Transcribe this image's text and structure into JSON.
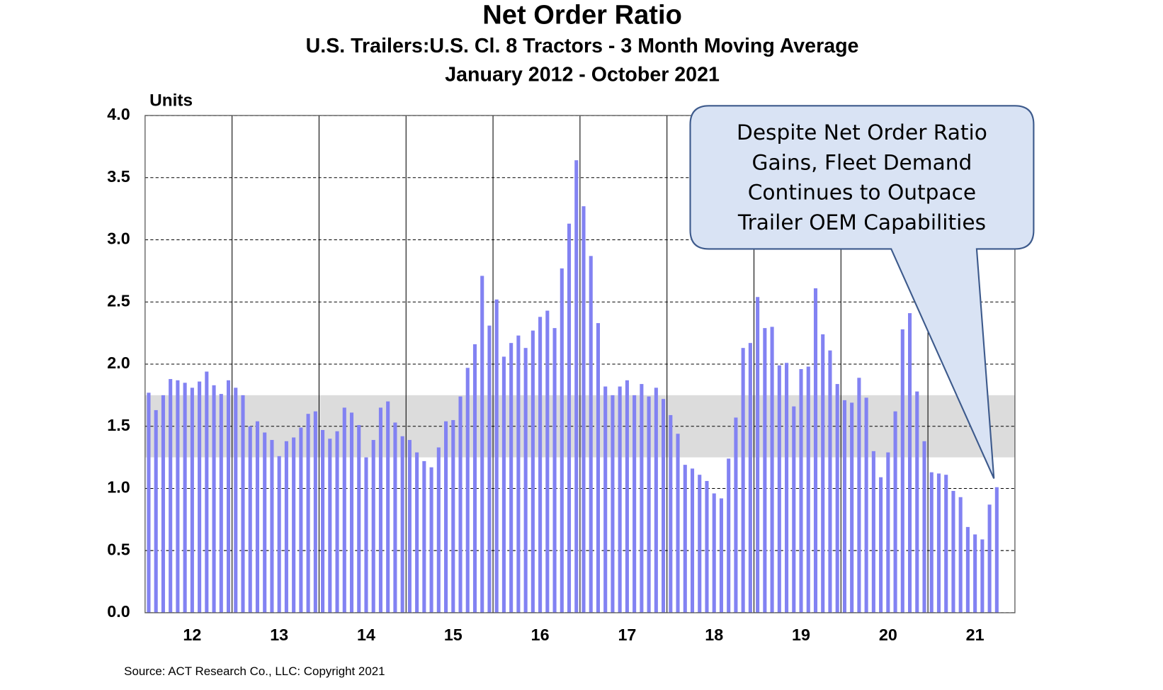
{
  "chart_data": {
    "type": "bar",
    "title": "Net Order Ratio",
    "subtitle": "U.S. Trailers:U.S. Cl. 8 Tractors - 3 Month Moving Average",
    "period": "January 2012 - October 2021",
    "y_label": "Units",
    "source": "Source:  ACT Research  Co., LLC: Copyright  2021",
    "annotation": [
      "Despite Net Order Ratio",
      "Gains, Fleet Demand",
      "Continues to Outpace",
      "Trailer OEM Capabilities"
    ],
    "color": "#8282f2",
    "band": [
      1.25,
      1.75
    ],
    "band_color": "#dcdcdc",
    "grid": true,
    "ylim": [
      0,
      4
    ],
    "yticks": [
      {
        "value": 0,
        "label": "0.0"
      },
      0.5,
      {
        "value": 1,
        "label": "1.0"
      },
      1.5,
      {
        "value": 2,
        "label": "2.0"
      },
      2.5,
      {
        "value": 3,
        "label": "3.0"
      },
      3.5,
      {
        "value": 4,
        "label": "4.0"
      }
    ],
    "categories": [
      null,
      null,
      null,
      null,
      null,
      null,
      "12",
      null,
      null,
      null,
      null,
      null,
      null,
      null,
      null,
      null,
      null,
      null,
      "13",
      null,
      null,
      null,
      null,
      null,
      null,
      null,
      null,
      null,
      null,
      null,
      "14",
      null,
      null,
      null,
      null,
      null,
      null,
      null,
      null,
      null,
      null,
      null,
      "15",
      null,
      null,
      null,
      null,
      null,
      null,
      null,
      null,
      null,
      null,
      null,
      "16",
      null,
      null,
      null,
      null,
      null,
      null,
      null,
      null,
      null,
      null,
      null,
      "17",
      null,
      null,
      null,
      null,
      null,
      null,
      null,
      null,
      null,
      null,
      null,
      "18",
      null,
      null,
      null,
      null,
      null,
      null,
      null,
      null,
      null,
      null,
      null,
      "19",
      null,
      null,
      null,
      null,
      null,
      null,
      null,
      null,
      null,
      null,
      null,
      "20",
      null,
      null,
      null,
      null,
      null,
      null,
      null,
      null,
      null,
      null,
      null,
      "21",
      null,
      null,
      null,
      null,
      null
    ],
    "values": [
      1.77,
      1.63,
      1.75,
      1.88,
      1.87,
      1.85,
      1.81,
      1.86,
      1.94,
      1.83,
      1.76,
      1.87,
      1.81,
      1.75,
      1.5,
      1.54,
      1.45,
      1.39,
      1.26,
      1.38,
      1.41,
      1.49,
      1.6,
      1.62,
      1.47,
      1.4,
      1.46,
      1.65,
      1.61,
      1.51,
      1.25,
      1.39,
      1.65,
      1.7,
      1.53,
      1.42,
      1.39,
      1.29,
      1.22,
      1.17,
      1.33,
      1.54,
      1.55,
      1.74,
      1.97,
      2.16,
      2.71,
      2.31,
      2.52,
      2.06,
      2.17,
      2.23,
      2.13,
      2.27,
      2.38,
      2.43,
      2.29,
      2.77,
      3.13,
      3.64,
      3.27,
      2.87,
      2.33,
      1.82,
      1.75,
      1.82,
      1.87,
      1.75,
      1.84,
      1.74,
      1.81,
      1.72,
      1.59,
      1.44,
      1.19,
      1.16,
      1.11,
      1.06,
      0.96,
      0.92,
      1.24,
      1.57,
      2.13,
      2.17,
      2.54,
      2.29,
      2.3,
      1.99,
      2.01,
      1.66,
      1.96,
      1.98,
      2.61,
      2.24,
      2.11,
      1.84,
      1.71,
      1.69,
      1.89,
      1.73,
      1.3,
      1.09,
      1.29,
      1.62,
      2.28,
      2.41,
      1.78,
      1.38,
      1.13,
      1.12,
      1.11,
      0.98,
      0.93,
      0.69,
      0.63,
      0.59,
      0.87,
      1.01,
      null,
      null
    ]
  }
}
